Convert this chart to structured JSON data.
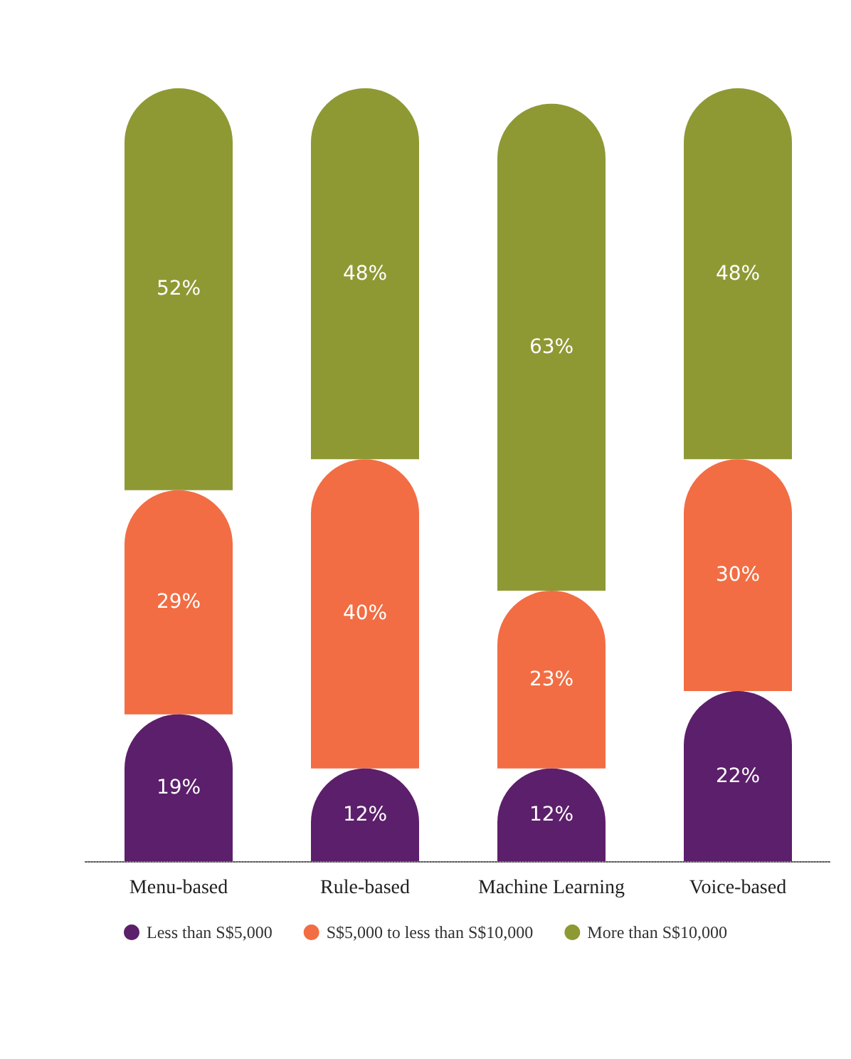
{
  "chart_data": {
    "type": "bar",
    "stacked": true,
    "legend": "bottom",
    "categories": [
      "Menu-based",
      "Rule-based",
      "Machine Learning",
      "Voice-based"
    ],
    "series": [
      {
        "name": "Less than S$5,000",
        "color": "#5c1f6b",
        "values": [
          19,
          12,
          12,
          22
        ],
        "value_labels": [
          "19%",
          "12%",
          "12%",
          "22%"
        ]
      },
      {
        "name": "S$5,000 to less than S$10,000",
        "color": "#f26d43",
        "values": [
          29,
          40,
          23,
          30
        ],
        "value_labels": [
          "29%",
          "40%",
          "23%",
          "30%"
        ]
      },
      {
        "name": "More than S$10,000",
        "color": "#8e9934",
        "values": [
          52,
          48,
          63,
          48
        ],
        "value_labels": [
          "52%",
          "48%",
          "63%",
          "48%"
        ]
      }
    ]
  }
}
